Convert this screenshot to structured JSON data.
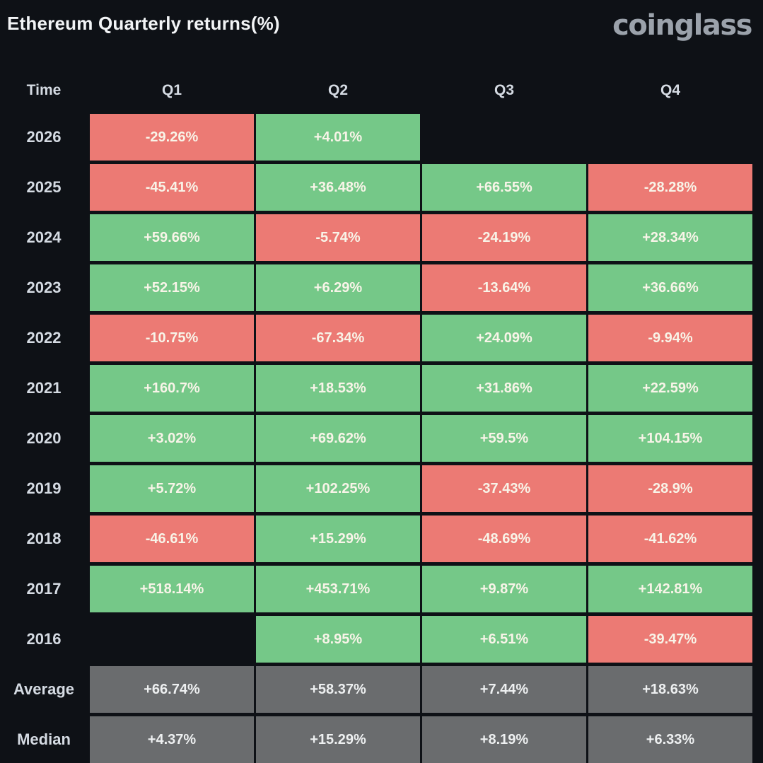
{
  "header": {
    "title": "Ethereum Quarterly returns(%)",
    "logo_text": "coinglass"
  },
  "colors": {
    "background": "#0e1116",
    "positive": "#75c888",
    "negative": "#ec7a74",
    "neutral": "#6a6c6e",
    "cell_text": "#f8f4e8"
  },
  "chart_data": {
    "type": "table",
    "title": "Ethereum Quarterly returns(%)",
    "columns": [
      "Time",
      "Q1",
      "Q2",
      "Q3",
      "Q4"
    ],
    "rows": [
      {
        "label": "2026",
        "kind": "year",
        "values": [
          "-29.26%",
          "+4.01%",
          null,
          null
        ]
      },
      {
        "label": "2025",
        "kind": "year",
        "values": [
          "-45.41%",
          "+36.48%",
          "+66.55%",
          "-28.28%"
        ]
      },
      {
        "label": "2024",
        "kind": "year",
        "values": [
          "+59.66%",
          "-5.74%",
          "-24.19%",
          "+28.34%"
        ]
      },
      {
        "label": "2023",
        "kind": "year",
        "values": [
          "+52.15%",
          "+6.29%",
          "-13.64%",
          "+36.66%"
        ]
      },
      {
        "label": "2022",
        "kind": "year",
        "values": [
          "-10.75%",
          "-67.34%",
          "+24.09%",
          "-9.94%"
        ]
      },
      {
        "label": "2021",
        "kind": "year",
        "values": [
          "+160.7%",
          "+18.53%",
          "+31.86%",
          "+22.59%"
        ]
      },
      {
        "label": "2020",
        "kind": "year",
        "values": [
          "+3.02%",
          "+69.62%",
          "+59.5%",
          "+104.15%"
        ]
      },
      {
        "label": "2019",
        "kind": "year",
        "values": [
          "+5.72%",
          "+102.25%",
          "-37.43%",
          "-28.9%"
        ]
      },
      {
        "label": "2018",
        "kind": "year",
        "values": [
          "-46.61%",
          "+15.29%",
          "-48.69%",
          "-41.62%"
        ]
      },
      {
        "label": "2017",
        "kind": "year",
        "values": [
          "+518.14%",
          "+453.71%",
          "+9.87%",
          "+142.81%"
        ]
      },
      {
        "label": "2016",
        "kind": "year",
        "values": [
          null,
          "+8.95%",
          "+6.51%",
          "-39.47%"
        ]
      },
      {
        "label": "Average",
        "kind": "summary",
        "values": [
          "+66.74%",
          "+58.37%",
          "+7.44%",
          "+18.63%"
        ]
      },
      {
        "label": "Median",
        "kind": "summary",
        "values": [
          "+4.37%",
          "+15.29%",
          "+8.19%",
          "+6.33%"
        ]
      }
    ]
  }
}
